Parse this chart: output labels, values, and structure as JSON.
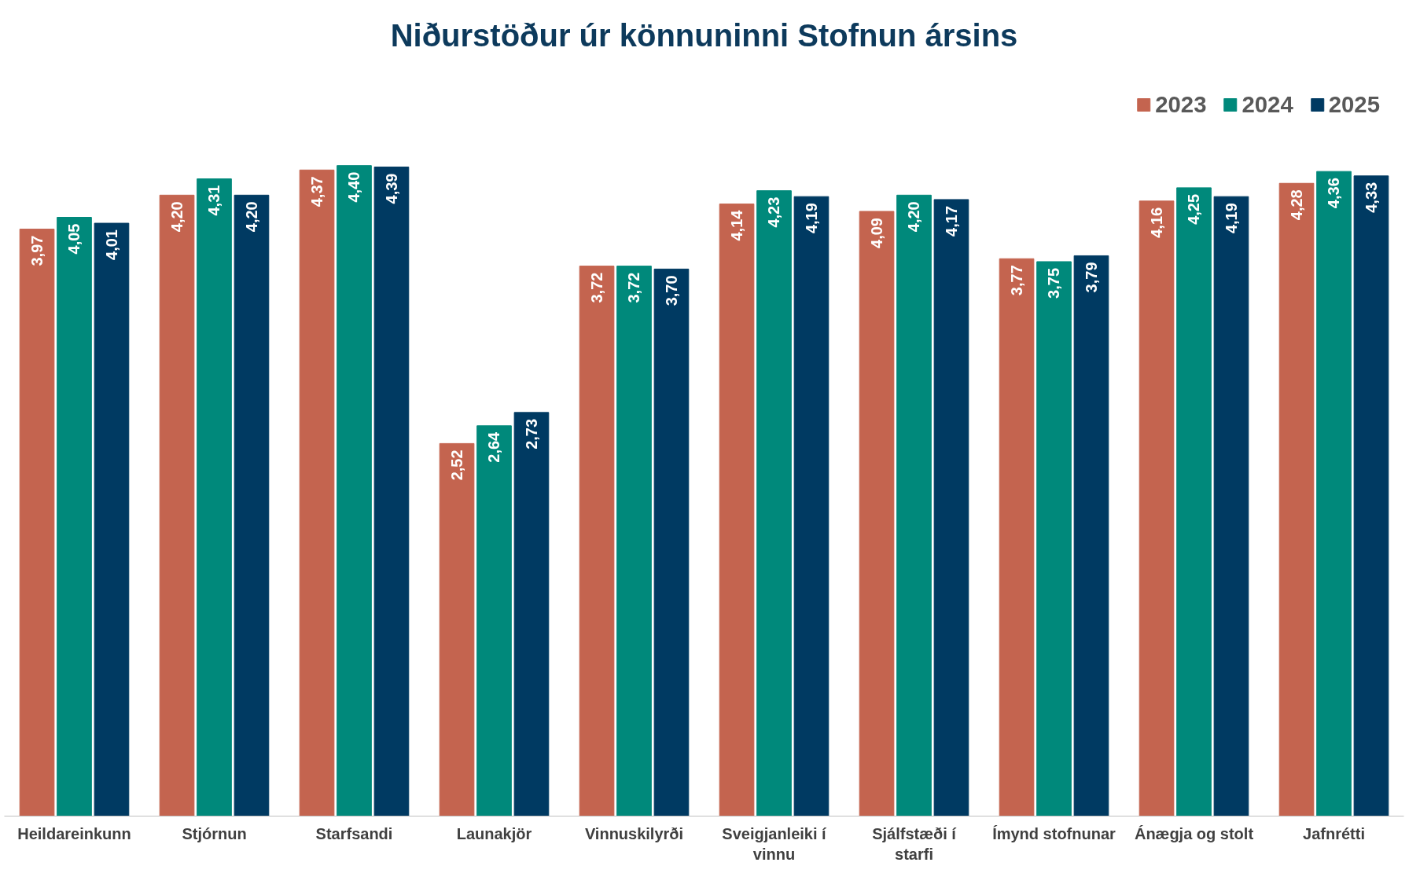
{
  "chart_data": {
    "type": "bar",
    "title": "Niðurstöður úr könnuninni Stofnun ársins",
    "categories": [
      "Heildareinkunn",
      "Stjórnun",
      "Starfsandi",
      "Launakjör",
      "Vinnuskilyrði",
      "Sveigjanleiki í vinnu",
      "Sjálfstæði í starfi",
      "Ímynd stofnunar",
      "Ánægja og stolt",
      "Jafnrétti"
    ],
    "series": [
      {
        "name": "2023",
        "color": "#c4644f",
        "values": [
          3.97,
          4.2,
          4.37,
          2.52,
          3.72,
          4.14,
          4.09,
          3.77,
          4.16,
          4.28
        ],
        "value_labels": [
          "3,97",
          "4,20",
          "4,37",
          "2,52",
          "3,72",
          "4,14",
          "4,09",
          "3,77",
          "4,16",
          "4,28"
        ]
      },
      {
        "name": "2024",
        "color": "#00897b",
        "values": [
          4.05,
          4.31,
          4.4,
          2.64,
          3.72,
          4.23,
          4.2,
          3.75,
          4.25,
          4.36
        ],
        "value_labels": [
          "4,05",
          "4,31",
          "4,40",
          "2,64",
          "3,72",
          "4,23",
          "4,20",
          "3,75",
          "4,25",
          "4,36"
        ]
      },
      {
        "name": "2025",
        "color": "#003a62",
        "values": [
          4.01,
          4.2,
          4.39,
          2.73,
          3.7,
          4.19,
          4.17,
          3.79,
          4.19,
          4.33
        ],
        "value_labels": [
          "4,01",
          "4,20",
          "4,39",
          "2,73",
          "3,70",
          "4,19",
          "4,17",
          "3,79",
          "4,19",
          "4,33"
        ]
      }
    ],
    "grid": false,
    "legend": "top right"
  }
}
